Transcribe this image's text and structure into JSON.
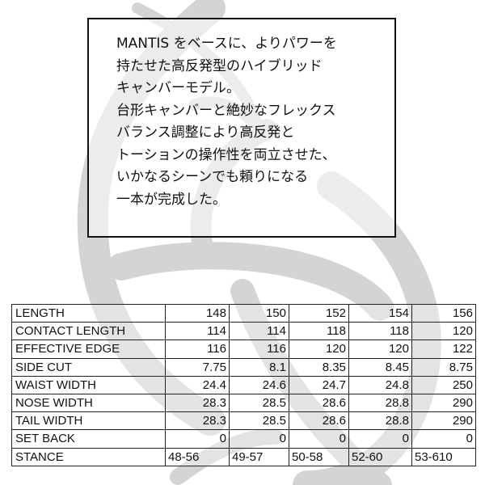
{
  "description": {
    "lines": [
      "MANTIS をベースに、よりパワーを",
      "持たせた高反発型のハイブリッド",
      "キャンバーモデル。",
      "台形キャンバーと絶妙なフレックス",
      "バランス調整により高反発と",
      "トーションの操作性を両立させた、",
      "いかなるシーンでも頼りになる",
      "一本が完成した。"
    ]
  },
  "watermark": {
    "icon": "swirl-logo-watermark",
    "color": "#d4d4d4"
  },
  "spec_table": {
    "rows": [
      {
        "label": "LENGTH",
        "values": [
          "148",
          "150",
          "152",
          "154",
          "156"
        ]
      },
      {
        "label": "CONTACT LENGTH",
        "values": [
          "114",
          "114",
          "118",
          "118",
          "120"
        ]
      },
      {
        "label": "EFFECTIVE EDGE",
        "values": [
          "116",
          "116",
          "120",
          "120",
          "122"
        ]
      },
      {
        "label": "SIDE CUT",
        "values": [
          "7.75",
          "8.1",
          "8.35",
          "8.45",
          "8.75"
        ]
      },
      {
        "label": "WAIST WIDTH",
        "values": [
          "24.4",
          "24.6",
          "24.7",
          "24.8",
          "250"
        ]
      },
      {
        "label": "NOSE WIDTH",
        "values": [
          "28.3",
          "28.5",
          "28.6",
          "28.8",
          "290"
        ]
      },
      {
        "label": "TAIL WIDTH",
        "values": [
          "28.3",
          "28.5",
          "28.6",
          "28.8",
          "290"
        ]
      },
      {
        "label": "SET BACK",
        "values": [
          "0",
          "0",
          "0",
          "0",
          "0"
        ]
      },
      {
        "label": "STANCE",
        "values": [
          "48-56",
          "49-57",
          "50-58",
          "52-60",
          "53-610"
        ]
      }
    ]
  }
}
